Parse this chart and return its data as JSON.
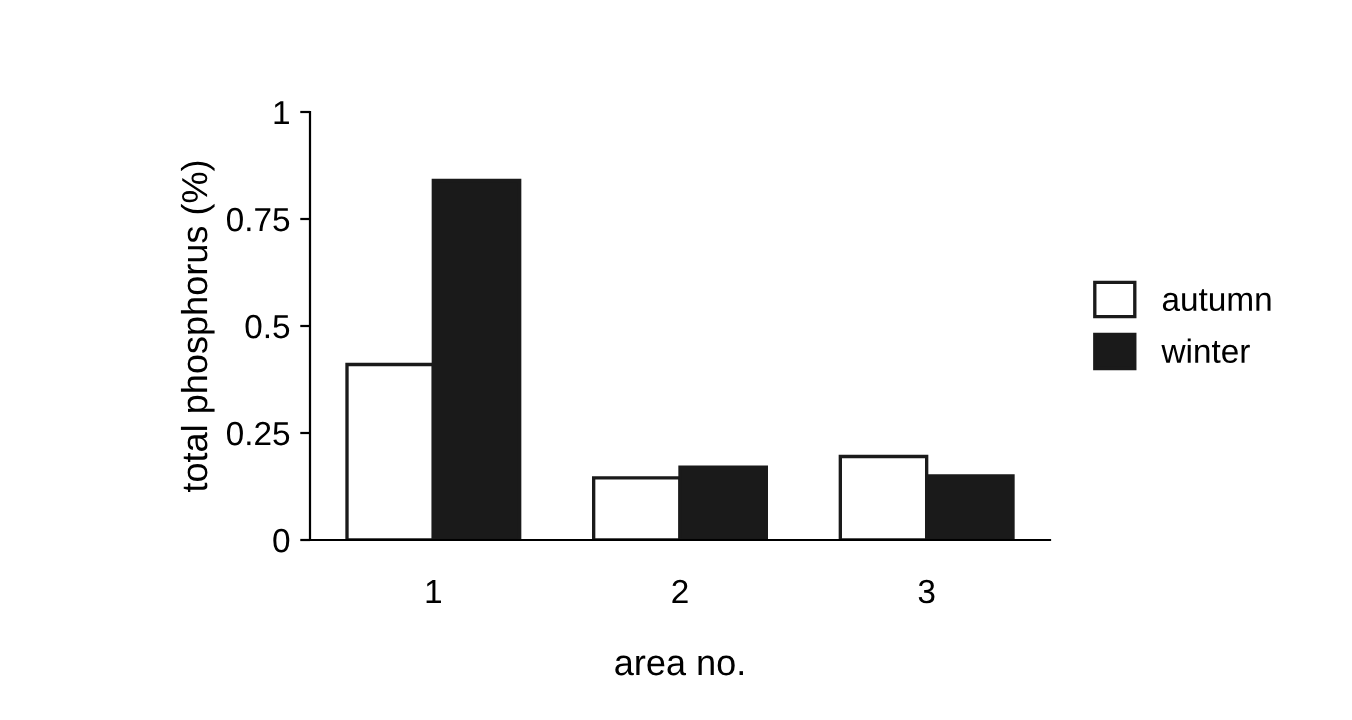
{
  "chart_data": {
    "type": "bar",
    "xlabel": "area no.",
    "ylabel": "total phosphorus (%)",
    "categories": [
      "1",
      "2",
      "3"
    ],
    "series": [
      {
        "name": "autumn",
        "color": "#ffffff",
        "values": [
          0.41,
          0.145,
          0.195
        ]
      },
      {
        "name": "winter",
        "color": "#1a1a1a",
        "values": [
          0.84,
          0.17,
          0.15
        ]
      }
    ],
    "ylim": [
      0,
      1
    ],
    "yticks": [
      0,
      0.25,
      0.5,
      0.75,
      1
    ],
    "grid": false,
    "legend": "right"
  }
}
